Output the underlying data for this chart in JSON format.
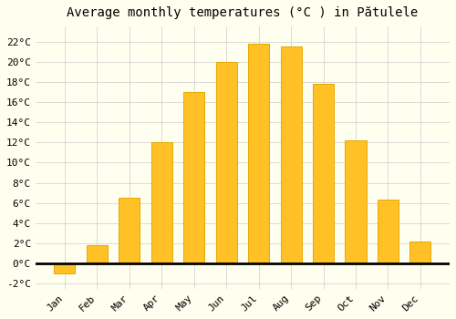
{
  "months": [
    "Jan",
    "Feb",
    "Mar",
    "Apr",
    "May",
    "Jun",
    "Jul",
    "Aug",
    "Sep",
    "Oct",
    "Nov",
    "Dec"
  ],
  "values": [
    -1.0,
    1.8,
    6.5,
    12.0,
    17.0,
    20.0,
    21.8,
    21.5,
    17.8,
    12.2,
    6.3,
    2.2
  ],
  "bar_color": "#FFC125",
  "bar_edge_color": "#E8A800",
  "background_color": "#FFFFF0",
  "grid_color": "#CCCCCC",
  "title": "Average monthly temperatures (°C ) in Pătulele",
  "title_fontsize": 10,
  "tick_fontsize": 8,
  "ylim": [
    -2.5,
    23.5
  ],
  "yticks": [
    -2,
    0,
    2,
    4,
    6,
    8,
    10,
    12,
    14,
    16,
    18,
    20,
    22
  ]
}
